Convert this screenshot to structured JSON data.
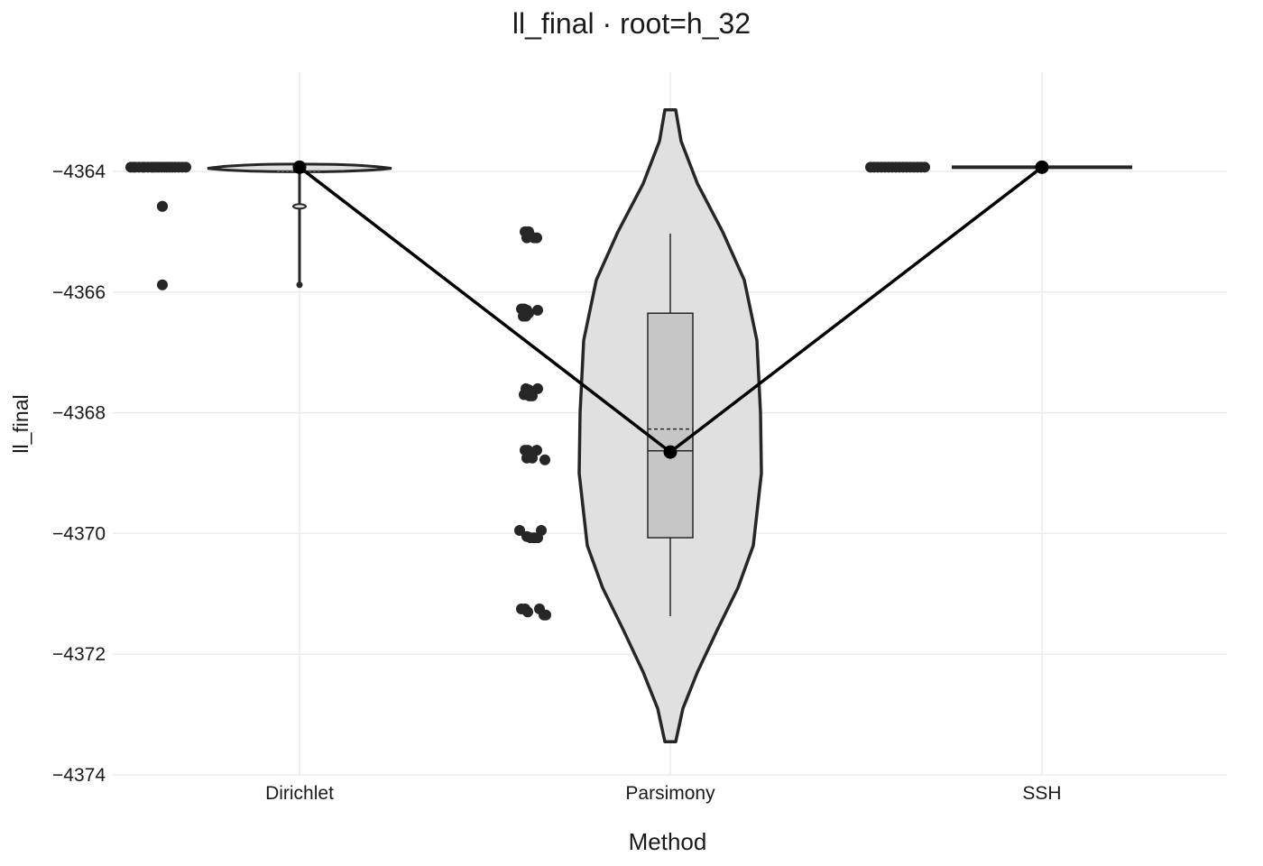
{
  "chart_data": {
    "type": "violin",
    "title": "ll_final · root=h_32",
    "xlabel": "Method",
    "ylabel": "ll_final",
    "categories": [
      "Dirichlet",
      "Parsimony",
      "SSH"
    ],
    "ylim": [
      -4374,
      -4362.9
    ],
    "yticks": [
      -4364,
      -4366,
      -4368,
      -4370,
      -4372,
      -4374
    ],
    "ytick_labels": [
      "−4364",
      "−4366",
      "−4368",
      "−4370",
      "−4372",
      "−4374"
    ],
    "grid": true,
    "fill_color": "#e0e0e0",
    "box_fill": "#c6c6c6",
    "outline_color": "#262626",
    "series": [
      {
        "category": "Dirichlet",
        "median": -4363.93,
        "mean": -4363.95,
        "min": -4365.88,
        "max": -4363.93,
        "points": [
          -4363.93,
          -4363.93,
          -4363.93,
          -4363.93,
          -4363.93,
          -4363.93,
          -4363.93,
          -4363.93,
          -4363.93,
          -4363.93,
          -4363.93,
          -4363.93,
          -4363.93,
          -4363.93,
          -4363.93,
          -4363.93,
          -4363.93,
          -4363.93,
          -4363.93,
          -4363.93,
          -4364.58,
          -4364.58,
          -4365.88
        ]
      },
      {
        "category": "Parsimony",
        "q1": -4370.07,
        "median": -4368.63,
        "q3": -4366.35,
        "mean": -4368.27,
        "whisker_low": -4371.37,
        "whisker_high": -4365.03,
        "min": -4373.45,
        "max": -4362.98,
        "points": [
          -4365.0,
          -4365.0,
          -4365.1,
          -4365.1,
          -4365.1,
          -4366.28,
          -4366.28,
          -4366.3,
          -4366.35,
          -4366.4,
          -4366.4,
          -4366.3,
          -4367.6,
          -4367.62,
          -4367.7,
          -4367.72,
          -4367.72,
          -4367.6,
          -4368.62,
          -4368.62,
          -4368.65,
          -4368.75,
          -4368.75,
          -4368.62,
          -4368.78,
          -4369.95,
          -4370.05,
          -4370.07,
          -4370.07,
          -4370.07,
          -4369.95,
          -4371.25,
          -4371.25,
          -4371.3,
          -4371.25,
          -4371.35,
          -4371.35
        ]
      },
      {
        "category": "SSH",
        "median": -4363.93,
        "mean": -4363.93,
        "min": -4363.93,
        "max": -4363.93,
        "points": [
          -4363.93,
          -4363.93,
          -4363.93,
          -4363.93,
          -4363.93,
          -4363.93,
          -4363.93,
          -4363.93,
          -4363.93,
          -4363.93,
          -4363.93,
          -4363.93,
          -4363.93,
          -4363.93,
          -4363.93,
          -4363.93
        ]
      }
    ],
    "mean_line": [
      -4363.93,
      -4368.65,
      -4363.93
    ]
  }
}
